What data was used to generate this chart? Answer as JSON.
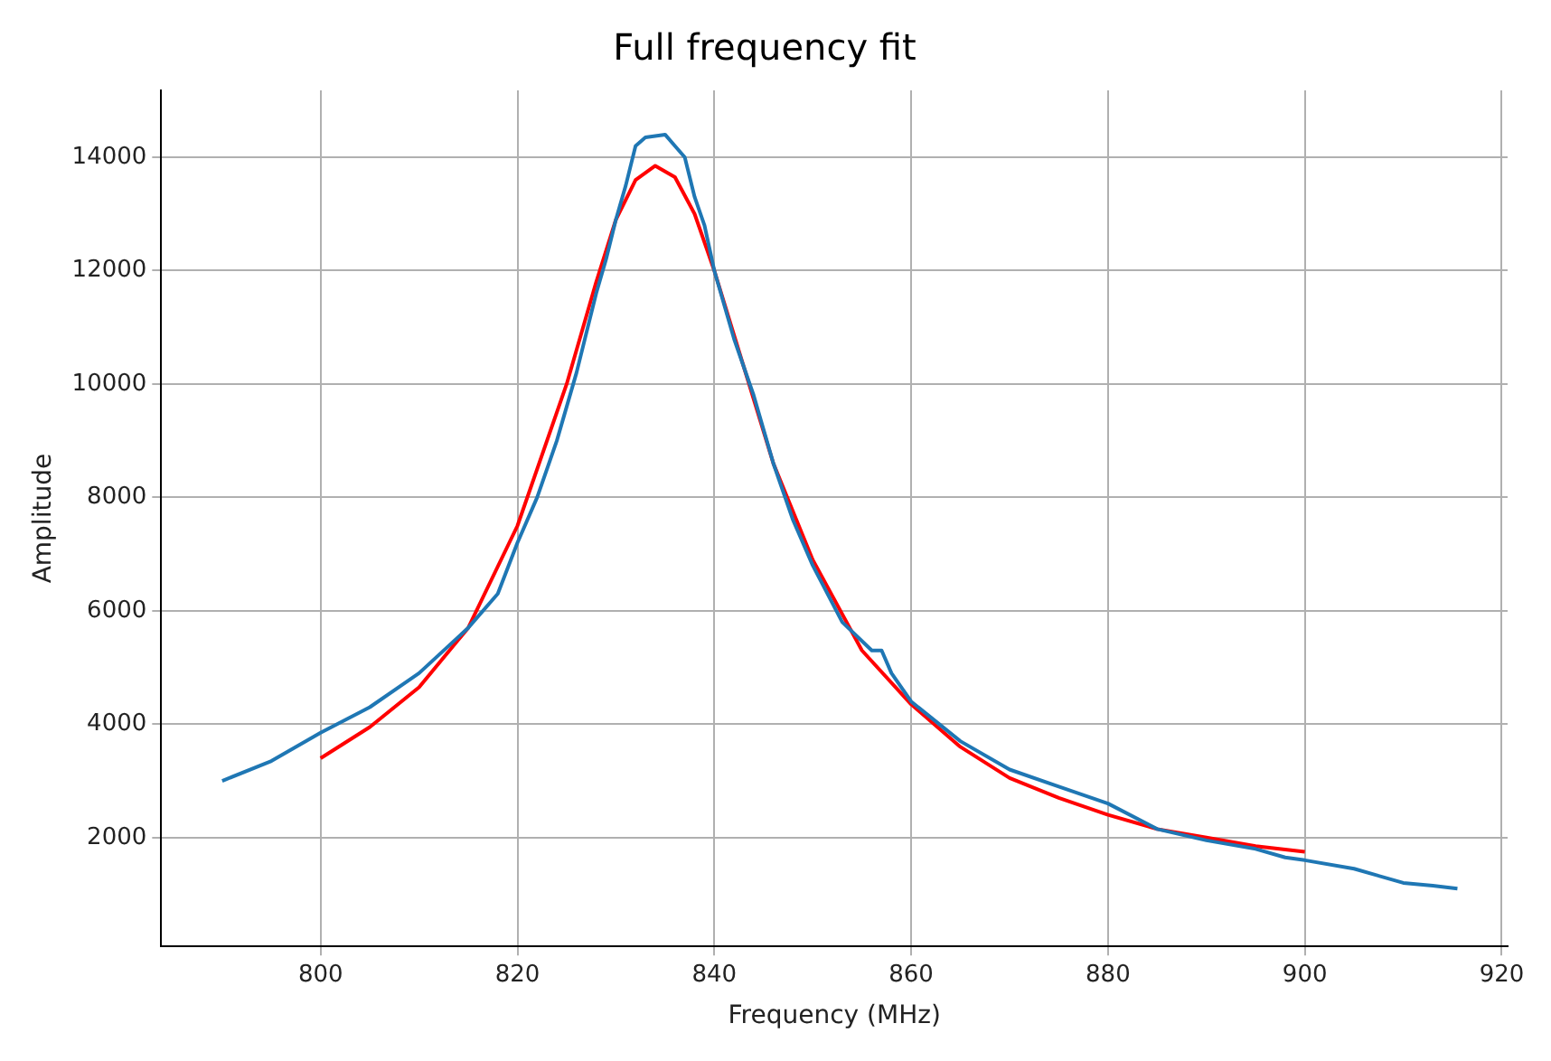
{
  "chart_data": {
    "type": "line",
    "title": "Full frequency fit",
    "xlabel": "Frequency (MHz)",
    "ylabel": "Amplitude",
    "xlim": [
      783.8,
      920.6
    ],
    "ylim": [
      80,
      15180
    ],
    "xticks": [
      800,
      820,
      840,
      860,
      880,
      900,
      920
    ],
    "yticks": [
      2000,
      4000,
      6000,
      8000,
      10000,
      12000,
      14000
    ],
    "grid": true,
    "marker": "none",
    "line_style": "solid",
    "series": [
      {
        "color": "#1f77b4",
        "x": [
          790,
          795,
          800,
          805,
          810,
          815,
          818,
          820,
          822,
          824,
          826,
          828,
          829,
          830,
          831,
          832,
          833,
          835,
          836,
          837,
          838,
          839,
          840,
          842,
          844,
          846,
          848,
          850,
          853,
          856,
          857,
          858,
          860,
          865,
          870,
          875,
          880,
          885,
          890,
          895,
          898,
          900,
          905,
          910,
          913,
          915.5
        ],
        "values": [
          3000,
          3350,
          3850,
          4300,
          4900,
          5700,
          6300,
          7200,
          8000,
          9000,
          10200,
          11600,
          12200,
          12900,
          13500,
          14200,
          14350,
          14400,
          14200,
          14000,
          13300,
          12800,
          12000,
          10800,
          9800,
          8600,
          7600,
          6800,
          5800,
          5300,
          5300,
          4900,
          4400,
          3700,
          3200,
          2900,
          2600,
          2150,
          1950,
          1800,
          1650,
          1600,
          1450,
          1200,
          1150,
          1100
        ]
      },
      {
        "color": "#ff0000",
        "x": [
          800,
          805,
          810,
          815,
          820,
          825,
          828,
          830,
          832,
          834,
          836,
          838,
          840,
          843,
          846,
          850,
          855,
          860,
          865,
          870,
          875,
          880,
          885,
          890,
          895,
          900
        ],
        "values": [
          3400,
          3950,
          4650,
          5700,
          7500,
          10000,
          11800,
          12900,
          13600,
          13850,
          13650,
          13000,
          12000,
          10300,
          8600,
          6900,
          5300,
          4350,
          3600,
          3050,
          2700,
          2400,
          2150,
          2000,
          1850,
          1750
        ]
      }
    ]
  }
}
